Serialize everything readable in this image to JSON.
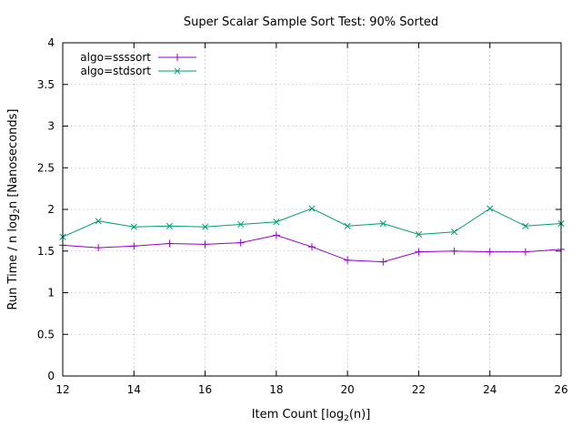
{
  "chart_data": {
    "type": "line",
    "title": "Super Scalar Sample Sort Test: 90% Sorted",
    "xlabel": "Item Count [log",
    "xlabel_sub": "2",
    "xlabel_tail": "(n)]",
    "ylabel": "Run Time / n log",
    "ylabel_sub": "2",
    "ylabel_tail": "n [Nanoseconds]",
    "xlim": [
      12,
      26
    ],
    "ylim": [
      0,
      4
    ],
    "xticks": [
      "12",
      "14",
      "16",
      "18",
      "20",
      "22",
      "24",
      "26"
    ],
    "yticks": [
      "0",
      "0.5",
      "1",
      "1.5",
      "2",
      "2.5",
      "3",
      "3.5",
      "4"
    ],
    "grid": true,
    "legend_position": "top-left",
    "x": [
      12,
      13,
      14,
      15,
      16,
      17,
      18,
      19,
      20,
      21,
      22,
      23,
      24,
      25,
      26
    ],
    "series": [
      {
        "name": "algo=ssssort",
        "color": "#9400d3",
        "marker": "plus",
        "values": [
          1.57,
          1.54,
          1.56,
          1.59,
          1.58,
          1.6,
          1.69,
          1.55,
          1.39,
          1.37,
          1.49,
          1.5,
          1.49,
          1.49,
          1.52
        ]
      },
      {
        "name": "algo=stdsort",
        "color": "#009e73",
        "marker": "cross",
        "values": [
          1.67,
          1.86,
          1.79,
          1.8,
          1.79,
          1.82,
          1.85,
          2.01,
          1.8,
          1.83,
          1.7,
          1.73,
          2.01,
          1.8,
          1.83
        ]
      }
    ]
  }
}
